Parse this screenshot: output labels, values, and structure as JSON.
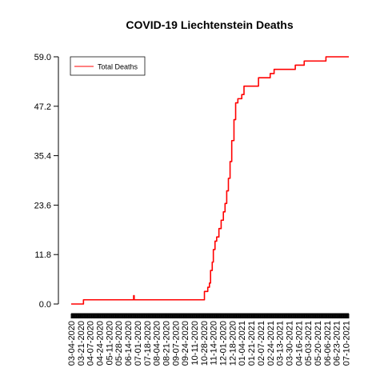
{
  "chart_data": {
    "type": "line",
    "title": "COVID-19 Liechtenstein Deaths",
    "xlabel": "",
    "ylabel": "",
    "ylim": [
      0,
      59
    ],
    "yticks": [
      "0.0",
      "11.8",
      "23.6",
      "35.4",
      "47.2",
      "59.0"
    ],
    "xtick_labels": [
      "03-04-2020",
      "03-21-2020",
      "04-07-2020",
      "04-24-2020",
      "05-11-2020",
      "05-28-2020",
      "06-14-2020",
      "07-01-2020",
      "07-18-2020",
      "08-04-2020",
      "08-21-2020",
      "09-07-2020",
      "09-24-2020",
      "10-11-2020",
      "10-28-2020",
      "11-14-2020",
      "12-01-2020",
      "12-18-2020",
      "01-04-2021",
      "01-21-2021",
      "02-07-2021",
      "02-24-2021",
      "03-13-2021",
      "03-30-2021",
      "04-16-2021",
      "05-03-2021",
      "05-20-2021",
      "06-06-2021",
      "06-23-2021",
      "07-10-2021"
    ],
    "legend": {
      "position": "top-left",
      "entries": [
        "Total Deaths"
      ]
    },
    "grid": false,
    "series": [
      {
        "name": "Total Deaths",
        "color": "#ff0000",
        "points": [
          [
            "03-04-2020",
            0
          ],
          [
            "03-25-2020",
            0
          ],
          [
            "03-26-2020",
            1
          ],
          [
            "06-23-2020",
            1
          ],
          [
            "06-24-2020",
            2
          ],
          [
            "06-25-2020",
            1
          ],
          [
            "10-26-2020",
            1
          ],
          [
            "10-29-2020",
            3
          ],
          [
            "11-04-2020",
            4
          ],
          [
            "11-07-2020",
            5
          ],
          [
            "11-09-2020",
            8
          ],
          [
            "11-12-2020",
            10
          ],
          [
            "11-14-2020",
            13
          ],
          [
            "11-17-2020",
            15
          ],
          [
            "11-20-2020",
            16
          ],
          [
            "11-24-2020",
            18
          ],
          [
            "11-28-2020",
            20
          ],
          [
            "12-02-2020",
            22
          ],
          [
            "12-05-2020",
            24
          ],
          [
            "12-08-2020",
            27
          ],
          [
            "12-11-2020",
            30
          ],
          [
            "12-14-2020",
            34
          ],
          [
            "12-17-2020",
            39
          ],
          [
            "12-21-2020",
            44
          ],
          [
            "12-24-2020",
            48
          ],
          [
            "12-28-2020",
            49
          ],
          [
            "01-04-2021",
            50
          ],
          [
            "01-08-2021",
            52
          ],
          [
            "02-03-2021",
            54
          ],
          [
            "02-24-2021",
            55
          ],
          [
            "03-03-2021",
            56
          ],
          [
            "04-10-2021",
            57
          ],
          [
            "04-26-2021",
            58
          ],
          [
            "06-04-2021",
            59
          ],
          [
            "07-15-2021",
            59
          ]
        ]
      }
    ]
  }
}
